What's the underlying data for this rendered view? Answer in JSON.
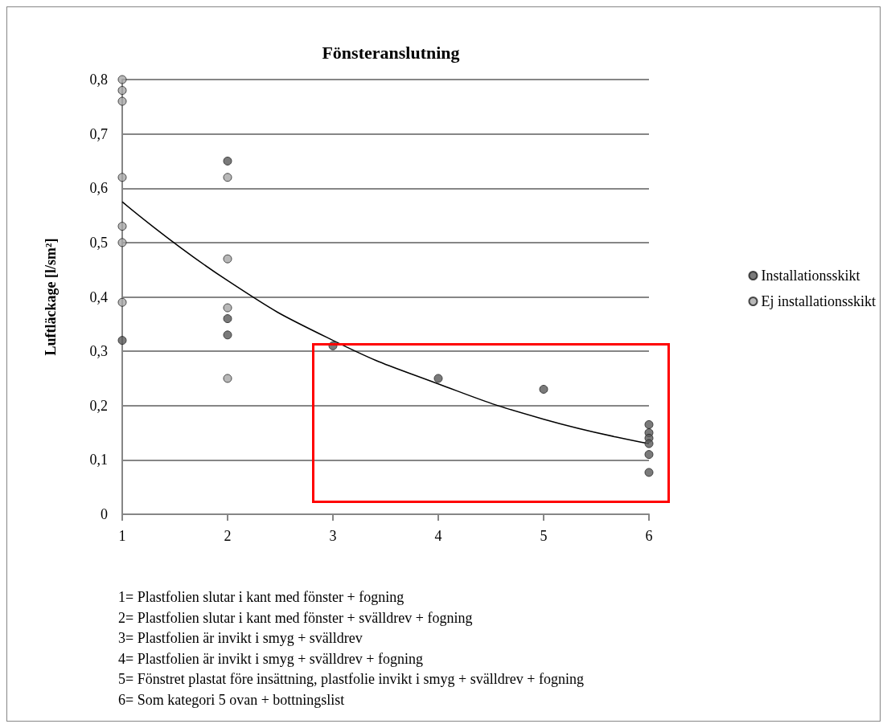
{
  "chart_data": {
    "type": "scatter",
    "title": "Fönsteranslutning",
    "ylabel": "Luftläckage [l/sm²]",
    "xlim": [
      1,
      6
    ],
    "xticks": [
      1,
      2,
      3,
      4,
      5,
      6
    ],
    "ylim": [
      0,
      0.8
    ],
    "yticks": [
      {
        "value": 0,
        "label": "0"
      },
      {
        "value": 0.1,
        "label": "0,1"
      },
      {
        "value": 0.2,
        "label": "0,2"
      },
      {
        "value": 0.3,
        "label": "0,3"
      },
      {
        "value": 0.4,
        "label": "0,4"
      },
      {
        "value": 0.5,
        "label": "0,5"
      },
      {
        "value": 0.6,
        "label": "0,6"
      },
      {
        "value": 0.7,
        "label": "0,7"
      },
      {
        "value": 0.8,
        "label": "0,8"
      }
    ],
    "grid": "y",
    "legend": "right",
    "marker": "circle",
    "series": [
      {
        "name": "Installationsskikt",
        "color": "#595959",
        "x": [
          1,
          2,
          2,
          2,
          3,
          4,
          5,
          6,
          6,
          6,
          6,
          6,
          6
        ],
        "values": [
          0.32,
          0.65,
          0.36,
          0.33,
          0.31,
          0.25,
          0.23,
          0.165,
          0.15,
          0.14,
          0.13,
          0.11,
          0.077
        ]
      },
      {
        "name": "Ej installationsskikt",
        "color": "#a6a6a6",
        "x": [
          1,
          1,
          1,
          1,
          1,
          1,
          1,
          2,
          2,
          2,
          2
        ],
        "values": [
          0.8,
          0.78,
          0.76,
          0.62,
          0.53,
          0.5,
          0.39,
          0.62,
          0.47,
          0.38,
          0.25
        ]
      },
      {
        "type": "line",
        "color": "#000000",
        "line_style": "solid",
        "marker": "none",
        "x": [
          1,
          2,
          3,
          4,
          5,
          6
        ],
        "values": [
          0.575,
          0.43,
          0.32,
          0.24,
          0.175,
          0.13
        ]
      }
    ],
    "annotations": [
      "1= Plastfolien slutar i kant med fönster + fogning",
      "2= Plastfolien slutar i kant med fönster + svälldrev + fogning",
      "3= Plastfolien är invikt i smyg + svälldrev",
      "4= Plastfolien är invikt i smyg + svälldrev + fogning",
      "5= Fönstret plastat före insättning, plastfolie invikt i smyg + svälldrev + fogning",
      "6= Som kategori 5 ovan + bottningslist"
    ]
  }
}
